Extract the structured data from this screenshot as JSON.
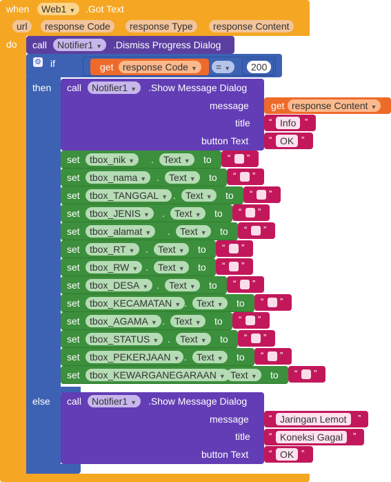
{
  "event": {
    "when": "when",
    "component": "Web1",
    "event_name": ".Got Text",
    "params": [
      "url",
      "response Code",
      "response Type",
      "response Content"
    ],
    "do": "do"
  },
  "dismiss": {
    "call": "call",
    "component": "Notifier1",
    "method": ".Dismiss Progress Dialog"
  },
  "if_block": {
    "if": "if",
    "then": "then",
    "else": "else",
    "get": "get",
    "get_var": "response Code",
    "op": "=",
    "value": "200"
  },
  "then_dialog": {
    "call": "call",
    "component": "Notifier1",
    "method": ".Show Message Dialog",
    "message_label": "message",
    "title_label": "title",
    "button_label": "button Text",
    "message_get": "get",
    "message_var": "response Content",
    "title": "Info",
    "button": "OK"
  },
  "sets": {
    "set": "set",
    "prop": "Text",
    "to": "to",
    "items": [
      "tbox_nik",
      "tbox_nama",
      "tbox_TANGGAL",
      "tbox_JENIS",
      "tbox_alamat",
      "tbox_RT",
      "tbox_RW",
      "tbox_DESA",
      "tbox_KECAMATAN",
      "tbox_AGAMA",
      "tbox_STATUS",
      "tbox_PEKERJAAN",
      "tbox_KEWARGANEGARAAN"
    ]
  },
  "else_dialog": {
    "call": "call",
    "component": "Notifier1",
    "method": ".Show Message Dialog",
    "message_label": "message",
    "title_label": "title",
    "button_label": "button Text",
    "message": "Jaringan Lemot",
    "title": "Koneksi Gagal",
    "button": "OK"
  },
  "colors": {
    "event": "#f5a623",
    "procedure": "#5b3fa0",
    "control": "#3d62b3",
    "setter": "#3c8f3c",
    "variable": "#ee6a2a",
    "text": "#c2185b"
  },
  "icons": [
    "dropdown-caret-icon",
    "gear-icon",
    "quote-icon"
  ]
}
